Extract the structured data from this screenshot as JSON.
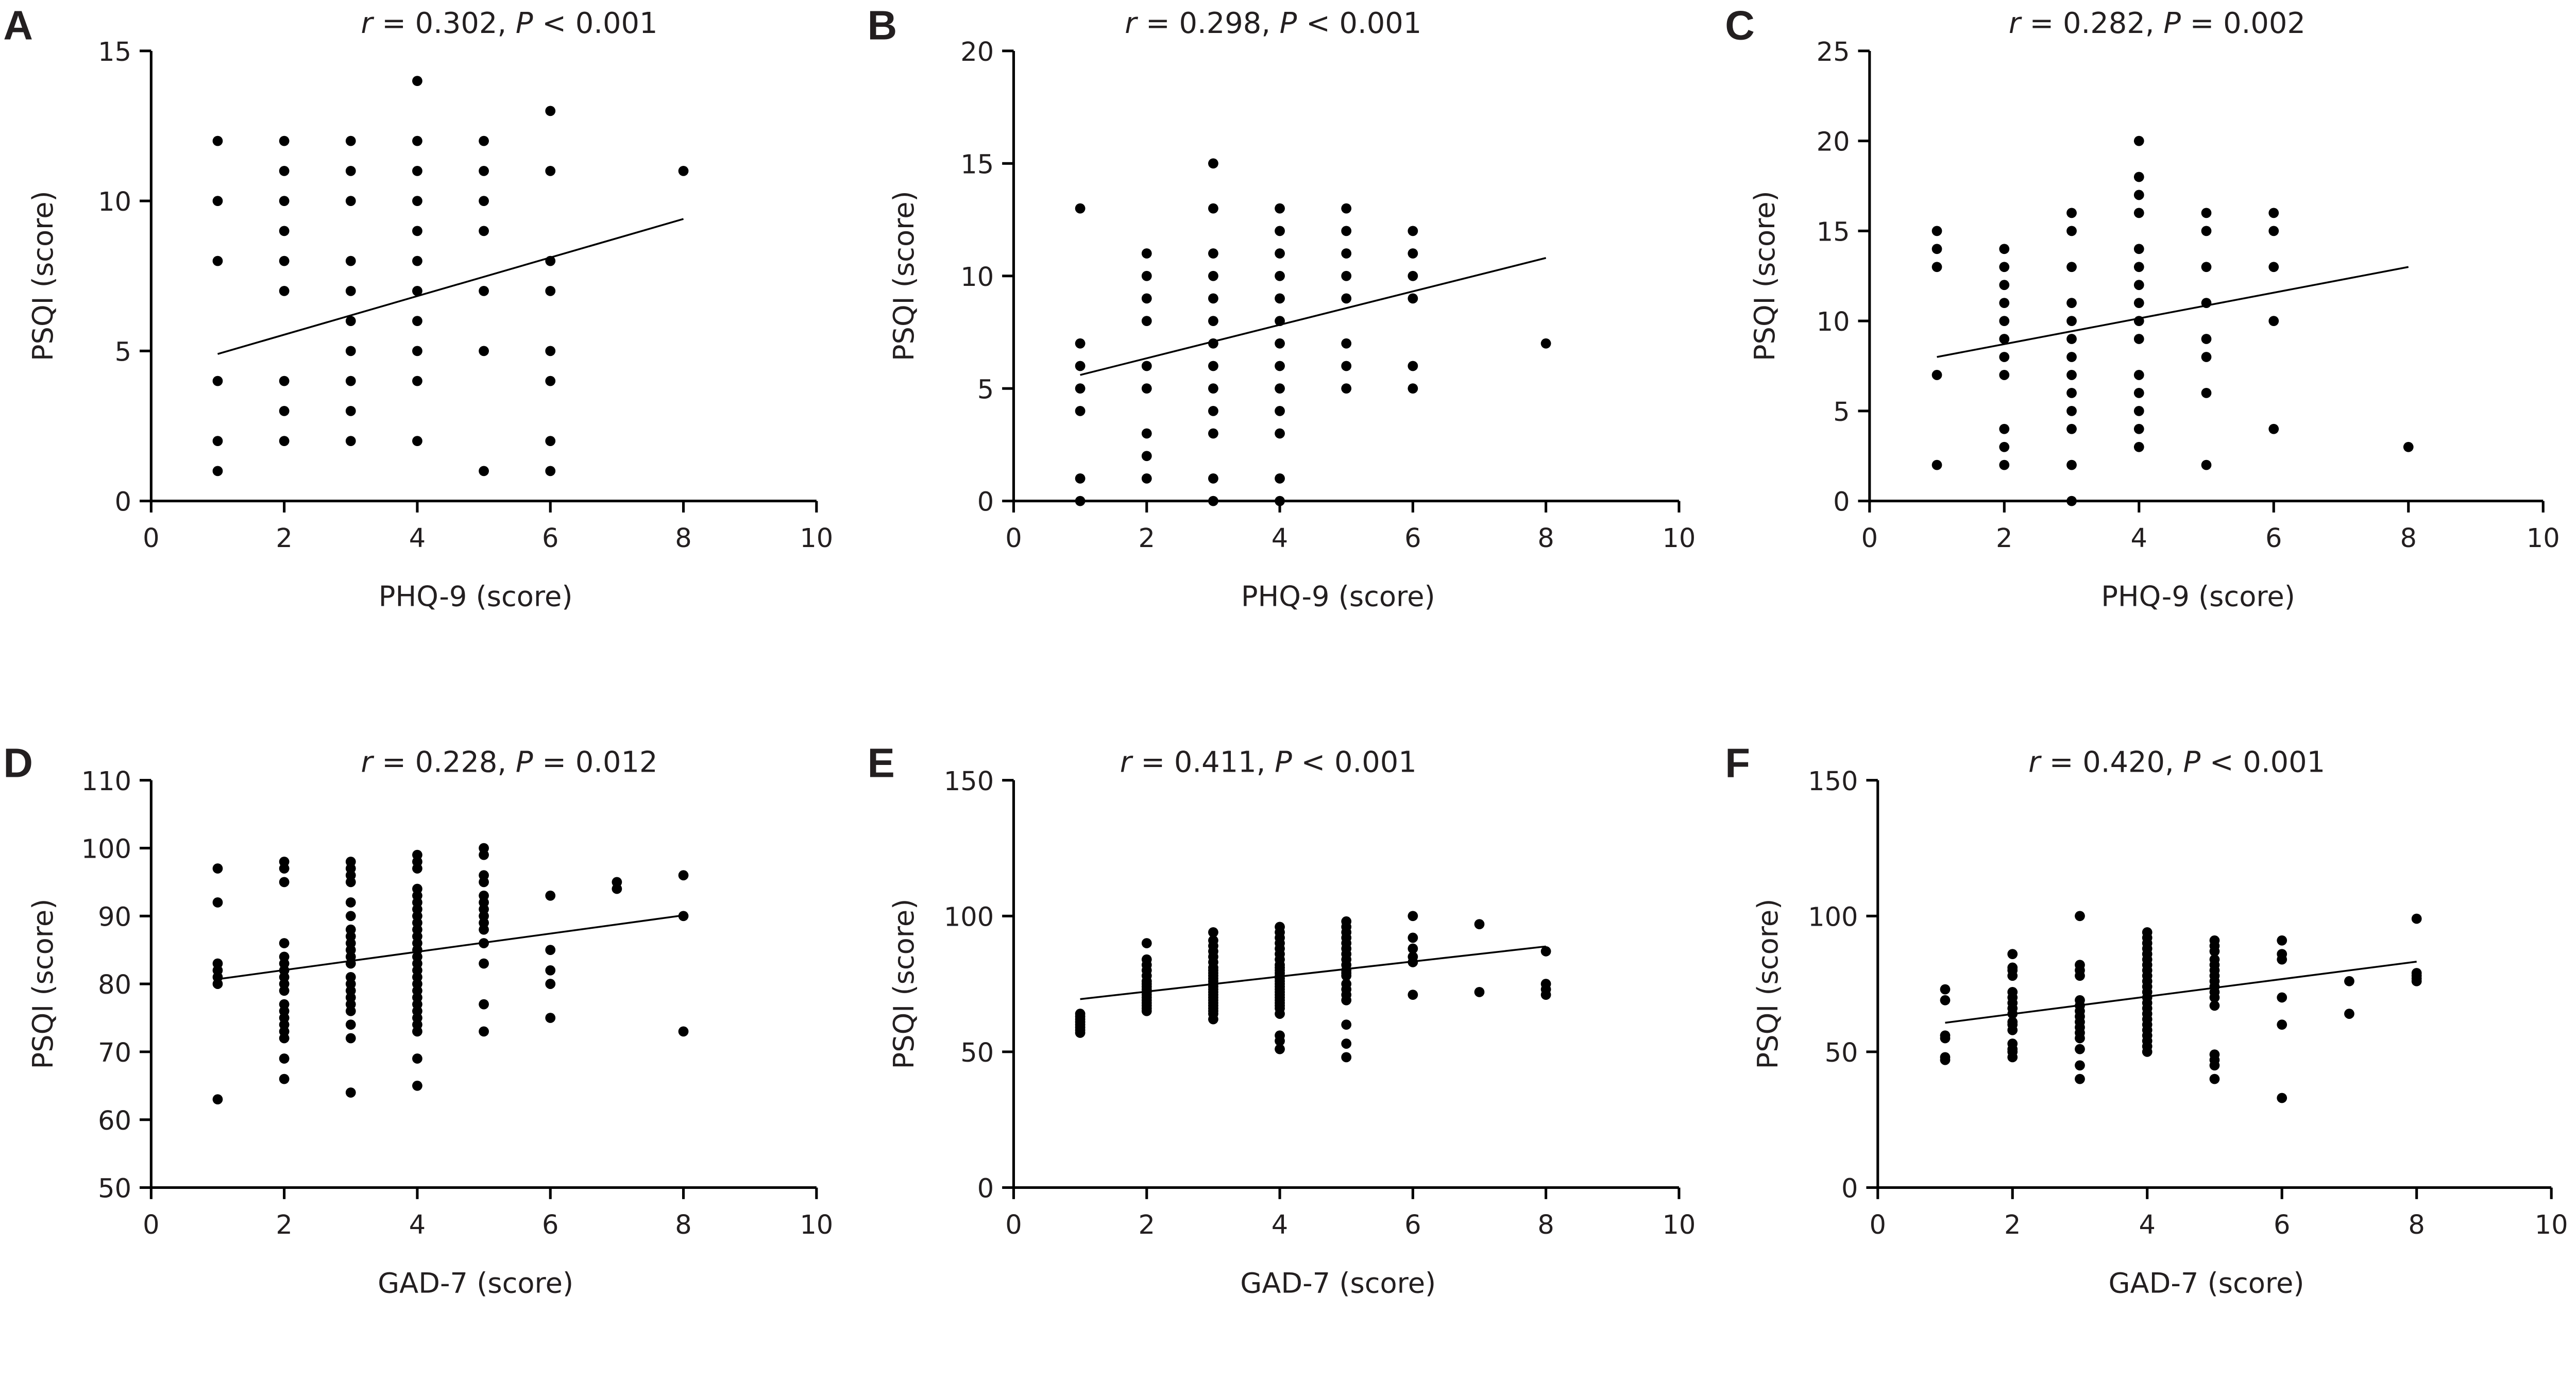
{
  "colors": {
    "text": "#231f20",
    "points": "#000000",
    "axes": "#000000"
  },
  "chart_data": [
    {
      "panel": "A",
      "type": "scatter",
      "title": "r = 0.302, P < 0.001",
      "xlabel": "PHQ-9 (score)",
      "ylabel": "PSQI (score)",
      "xlim": [
        0,
        10
      ],
      "ylim": [
        0,
        15
      ],
      "xticks": [
        0,
        2,
        4,
        6,
        8,
        10
      ],
      "yticks": [
        0,
        5,
        10,
        15
      ],
      "columns": [
        {
          "x": 1,
          "y": [
            12,
            10,
            8,
            4,
            2,
            1
          ]
        },
        {
          "x": 2,
          "y": [
            12,
            11,
            10,
            9,
            8,
            7,
            4,
            3,
            2
          ]
        },
        {
          "x": 3,
          "y": [
            12,
            11,
            10,
            8,
            7,
            6,
            5,
            4,
            3,
            2
          ]
        },
        {
          "x": 4,
          "y": [
            14,
            12,
            11,
            10,
            9,
            8,
            7,
            6,
            5,
            4,
            2
          ]
        },
        {
          "x": 5,
          "y": [
            12,
            11,
            10,
            9,
            7,
            5,
            1
          ]
        },
        {
          "x": 6,
          "y": [
            13,
            11,
            8,
            7,
            5,
            4,
            2,
            1
          ]
        },
        {
          "x": 8,
          "y": [
            11
          ]
        }
      ],
      "fit_line": {
        "x": [
          1,
          8
        ],
        "y": [
          4.9,
          9.4
        ]
      }
    },
    {
      "panel": "B",
      "type": "scatter",
      "title": "r = 0.298, P < 0.001",
      "xlabel": "PHQ-9 (score)",
      "ylabel": "PSQI (score)",
      "xlim": [
        0,
        10
      ],
      "ylim": [
        0,
        20
      ],
      "xticks": [
        0,
        2,
        4,
        6,
        8,
        10
      ],
      "yticks": [
        0,
        5,
        10,
        15,
        20
      ],
      "columns": [
        {
          "x": 1,
          "y": [
            13,
            7,
            6,
            5,
            4,
            1,
            0
          ]
        },
        {
          "x": 2,
          "y": [
            11,
            10,
            9,
            8,
            6,
            5,
            3,
            2,
            1
          ]
        },
        {
          "x": 3,
          "y": [
            15,
            13,
            11,
            10,
            9,
            8,
            7,
            6,
            5,
            4,
            3,
            1,
            0
          ]
        },
        {
          "x": 4,
          "y": [
            13,
            12,
            11,
            10,
            9,
            8,
            7,
            6,
            5,
            4,
            3,
            1,
            0
          ]
        },
        {
          "x": 5,
          "y": [
            13,
            12,
            11,
            10,
            9,
            7,
            6,
            5
          ]
        },
        {
          "x": 6,
          "y": [
            12,
            11,
            10,
            9,
            6,
            5
          ]
        },
        {
          "x": 8,
          "y": [
            7
          ]
        }
      ],
      "fit_line": {
        "x": [
          1,
          8
        ],
        "y": [
          5.6,
          10.8
        ]
      }
    },
    {
      "panel": "C",
      "type": "scatter",
      "title": "r = 0.282, P = 0.002",
      "xlabel": "PHQ-9 (score)",
      "ylabel": "PSQI (score)",
      "xlim": [
        0,
        10
      ],
      "ylim": [
        0,
        25
      ],
      "xticks": [
        0,
        2,
        4,
        6,
        8,
        10
      ],
      "yticks": [
        0,
        5,
        10,
        15,
        20,
        25
      ],
      "columns": [
        {
          "x": 1,
          "y": [
            15,
            14,
            13,
            7,
            2
          ]
        },
        {
          "x": 2,
          "y": [
            14,
            13,
            12,
            11,
            10,
            9,
            8,
            7,
            4,
            3,
            2
          ]
        },
        {
          "x": 3,
          "y": [
            16,
            15,
            13,
            11,
            10,
            9,
            8,
            7,
            6,
            5,
            4,
            2,
            0
          ]
        },
        {
          "x": 4,
          "y": [
            20,
            18,
            17,
            16,
            14,
            13,
            12,
            11,
            10,
            9,
            7,
            6,
            5,
            4,
            3
          ]
        },
        {
          "x": 5,
          "y": [
            16,
            15,
            13,
            11,
            9,
            8,
            6,
            2
          ]
        },
        {
          "x": 6,
          "y": [
            16,
            15,
            13,
            10,
            4
          ]
        },
        {
          "x": 8,
          "y": [
            3
          ]
        }
      ],
      "fit_line": {
        "x": [
          1,
          8
        ],
        "y": [
          8.0,
          13.0
        ]
      }
    },
    {
      "panel": "D",
      "type": "scatter",
      "title": "r = 0.228, P = 0.012",
      "xlabel": "GAD-7 (score)",
      "ylabel": "PSQI (score)",
      "xlim": [
        0,
        10
      ],
      "ylim": [
        50,
        110
      ],
      "xticks": [
        0,
        2,
        4,
        6,
        8,
        10
      ],
      "yticks": [
        50,
        60,
        70,
        80,
        90,
        100,
        110
      ],
      "columns": [
        {
          "x": 1,
          "y": [
            97,
            92,
            83,
            82,
            81,
            80,
            63
          ]
        },
        {
          "x": 2,
          "y": [
            98,
            97,
            95,
            86,
            84,
            83,
            82,
            81,
            80,
            79,
            77,
            76,
            75,
            74,
            73,
            72,
            69,
            66
          ]
        },
        {
          "x": 3,
          "y": [
            98,
            97,
            96,
            95,
            92,
            90,
            88,
            87,
            86,
            85,
            84,
            83,
            81,
            80,
            79,
            78,
            77,
            76,
            74,
            72,
            64
          ]
        },
        {
          "x": 4,
          "y": [
            99,
            98,
            97,
            94,
            93,
            92,
            91,
            90,
            89,
            88,
            87,
            86,
            85,
            84,
            83,
            82,
            81,
            80,
            79,
            78,
            77,
            76,
            75,
            74,
            73,
            69,
            65
          ]
        },
        {
          "x": 5,
          "y": [
            100,
            99,
            96,
            95,
            93,
            92,
            91,
            90,
            89,
            88,
            86,
            83,
            77,
            73
          ]
        },
        {
          "x": 6,
          "y": [
            93,
            85,
            82,
            80,
            75
          ]
        },
        {
          "x": 7,
          "y": [
            95,
            94
          ]
        },
        {
          "x": 8,
          "y": [
            96,
            90,
            73
          ]
        }
      ],
      "fit_line": {
        "x": [
          1,
          8
        ],
        "y": [
          80.7,
          90.1
        ]
      }
    },
    {
      "panel": "E",
      "type": "scatter",
      "title": "r = 0.411, P < 0.001",
      "xlabel": "GAD-7 (score)",
      "ylabel": "PSQI (score)",
      "xlim": [
        0,
        10
      ],
      "ylim": [
        0,
        150
      ],
      "xticks": [
        0,
        2,
        4,
        6,
        8,
        10
      ],
      "yticks": [
        0,
        50,
        100,
        150
      ],
      "columns": [
        {
          "x": 1,
          "y": [
            64,
            63,
            62,
            61,
            60,
            59,
            58,
            57
          ]
        },
        {
          "x": 2,
          "y": [
            90,
            84,
            82,
            80,
            78,
            76,
            75,
            74,
            73,
            72,
            71,
            70,
            69,
            68,
            67,
            66,
            65
          ]
        },
        {
          "x": 3,
          "y": [
            94,
            91,
            89,
            87,
            85,
            83,
            81,
            80,
            79,
            78,
            77,
            76,
            75,
            74,
            73,
            72,
            71,
            70,
            69,
            68,
            67,
            66,
            65,
            64,
            62
          ]
        },
        {
          "x": 4,
          "y": [
            96,
            94,
            92,
            90,
            88,
            86,
            84,
            82,
            81,
            80,
            79,
            78,
            77,
            76,
            75,
            74,
            73,
            72,
            71,
            70,
            69,
            68,
            67,
            66,
            64,
            56,
            54,
            51
          ]
        },
        {
          "x": 5,
          "y": [
            98,
            96,
            94,
            92,
            90,
            88,
            86,
            84,
            82,
            80,
            79,
            78,
            75,
            73,
            71,
            69,
            60,
            53,
            48
          ]
        },
        {
          "x": 6,
          "y": [
            100,
            92,
            88,
            85,
            83,
            71
          ]
        },
        {
          "x": 7,
          "y": [
            97,
            72
          ]
        },
        {
          "x": 8,
          "y": [
            87,
            75,
            73,
            71
          ]
        }
      ],
      "fit_line": {
        "x": [
          1,
          8
        ],
        "y": [
          69.4,
          88.8
        ]
      }
    },
    {
      "panel": "F",
      "type": "scatter",
      "title": "r = 0.420, P < 0.001",
      "xlabel": "GAD-7 (score)",
      "ylabel": "PSQI (score)",
      "xlim": [
        0,
        10
      ],
      "ylim": [
        0,
        150
      ],
      "xticks": [
        0,
        2,
        4,
        6,
        8,
        10
      ],
      "yticks": [
        0,
        50,
        100,
        150
      ],
      "columns": [
        {
          "x": 1,
          "y": [
            73,
            69,
            56,
            55,
            48,
            47
          ]
        },
        {
          "x": 2,
          "y": [
            86,
            81,
            80,
            78,
            72,
            70,
            68,
            66,
            64,
            61,
            60,
            58,
            53,
            51,
            50,
            48
          ]
        },
        {
          "x": 3,
          "y": [
            100,
            82,
            80,
            78,
            69,
            67,
            65,
            63,
            61,
            59,
            57,
            55,
            51,
            45,
            40
          ]
        },
        {
          "x": 4,
          "y": [
            94,
            92,
            90,
            88,
            86,
            84,
            82,
            80,
            78,
            76,
            74,
            72,
            70,
            68,
            66,
            64,
            62,
            60,
            58,
            56,
            54,
            52,
            50
          ]
        },
        {
          "x": 5,
          "y": [
            91,
            89,
            87,
            84,
            82,
            80,
            78,
            76,
            74,
            72,
            70,
            67,
            49,
            47,
            45,
            40
          ]
        },
        {
          "x": 6,
          "y": [
            91,
            86,
            84,
            70,
            60,
            33
          ]
        },
        {
          "x": 7,
          "y": [
            76,
            64
          ]
        },
        {
          "x": 8,
          "y": [
            99,
            79,
            78,
            77,
            76
          ]
        }
      ],
      "fit_line": {
        "x": [
          1,
          8
        ],
        "y": [
          60.7,
          83.2
        ]
      }
    }
  ]
}
